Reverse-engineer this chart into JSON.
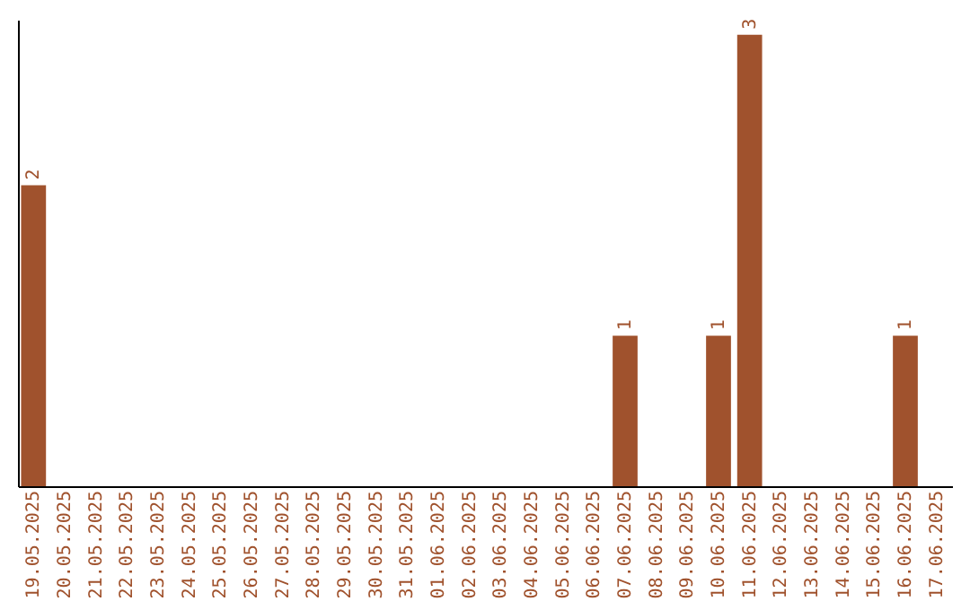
{
  "chart_data": {
    "type": "bar",
    "categories": [
      "19.05.2025",
      "20.05.2025",
      "21.05.2025",
      "22.05.2025",
      "23.05.2025",
      "24.05.2025",
      "25.05.2025",
      "26.05.2025",
      "27.05.2025",
      "28.05.2025",
      "29.05.2025",
      "30.05.2025",
      "31.05.2025",
      "01.06.2025",
      "02.06.2025",
      "03.06.2025",
      "04.06.2025",
      "05.06.2025",
      "06.06.2025",
      "07.06.2025",
      "08.06.2025",
      "09.06.2025",
      "10.06.2025",
      "11.06.2025",
      "12.06.2025",
      "13.06.2025",
      "14.06.2025",
      "15.06.2025",
      "16.06.2025",
      "17.06.2025"
    ],
    "values": [
      2,
      0,
      0,
      0,
      0,
      0,
      0,
      0,
      0,
      0,
      0,
      0,
      0,
      0,
      0,
      0,
      0,
      0,
      0,
      1,
      0,
      0,
      1,
      3,
      0,
      0,
      0,
      0,
      1,
      0
    ],
    "value_labels": [
      "2",
      null,
      null,
      null,
      null,
      null,
      null,
      null,
      null,
      null,
      null,
      null,
      null,
      null,
      null,
      null,
      null,
      null,
      null,
      "1",
      null,
      null,
      "1",
      "3",
      null,
      null,
      null,
      null,
      "1",
      null
    ],
    "color": "#a0522d",
    "ylim": [
      0,
      3.1
    ],
    "tick_labels": "x",
    "grid": false
  }
}
